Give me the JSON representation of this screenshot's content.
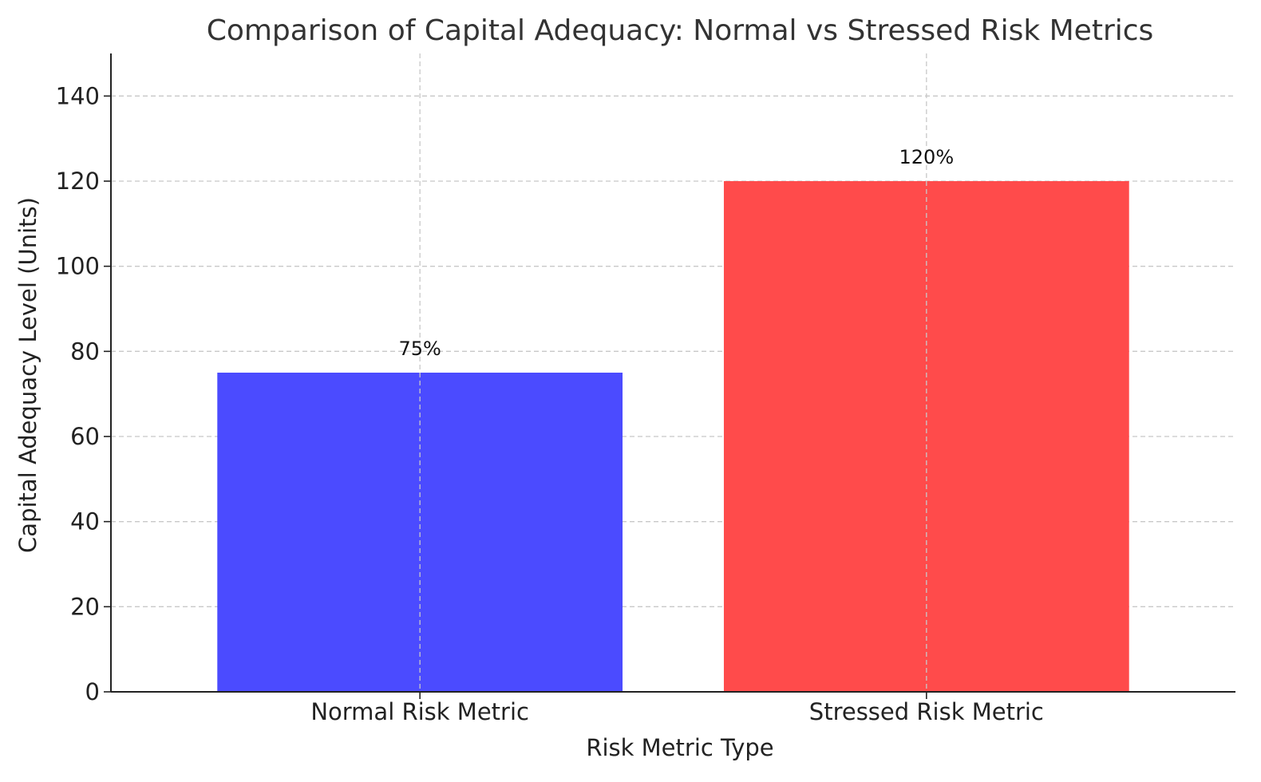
{
  "chart_data": {
    "type": "bar",
    "title": "Comparison of Capital Adequacy: Normal vs Stressed Risk Metrics",
    "xlabel": "Risk Metric Type",
    "ylabel": "Capital Adequacy Level (Units)",
    "categories": [
      "Normal Risk Metric",
      "Stressed Risk Metric"
    ],
    "values": [
      75,
      120
    ],
    "data_labels": [
      "75%",
      "120%"
    ],
    "colors": [
      "#4b4bff",
      "#ff4b4b"
    ],
    "ylim": [
      0,
      150
    ],
    "yticks": [
      0,
      20,
      40,
      60,
      80,
      100,
      120,
      140
    ],
    "grid": true,
    "legend": "none"
  }
}
